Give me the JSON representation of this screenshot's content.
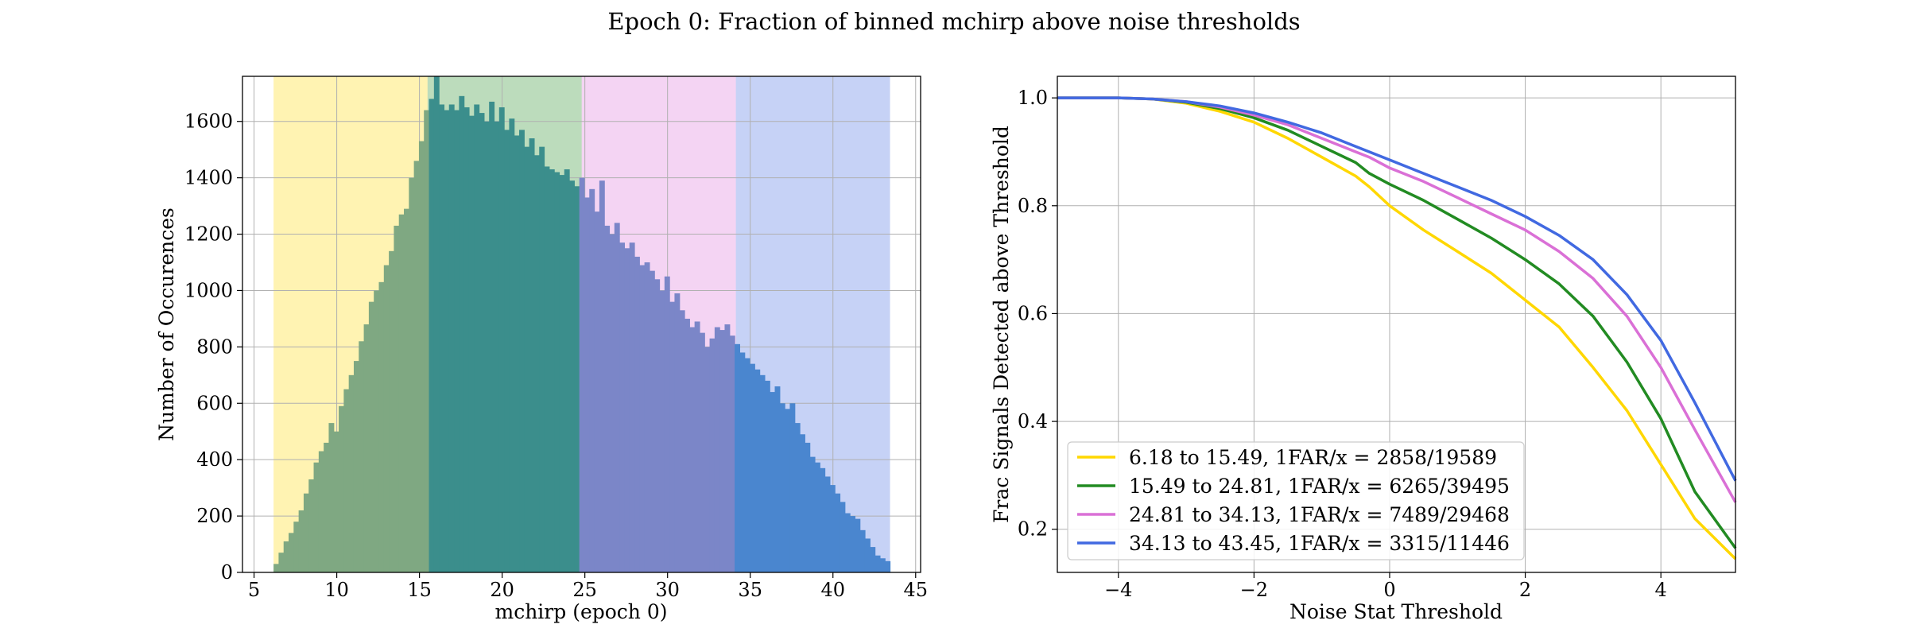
{
  "figure_title": "Epoch 0: Fraction of binned mchirp above noise thresholds",
  "chart_data": [
    {
      "type": "bar",
      "subtype": "histogram",
      "title": "",
      "xlabel": "mchirp (epoch 0)",
      "ylabel": "Number of Occurences",
      "xlim": [
        4.3,
        45.3
      ],
      "ylim": [
        0,
        1760
      ],
      "xticks": [
        5,
        10,
        15,
        20,
        25,
        30,
        35,
        40,
        45
      ],
      "yticks": [
        0,
        200,
        400,
        600,
        800,
        1000,
        1200,
        1400,
        1600
      ],
      "grid": true,
      "bins_start": 6.18,
      "bins_end": 43.45,
      "counts": [
        30,
        70,
        110,
        140,
        180,
        220,
        280,
        330,
        390,
        430,
        460,
        530,
        500,
        590,
        650,
        700,
        750,
        820,
        880,
        960,
        1000,
        1030,
        1090,
        1140,
        1230,
        1270,
        1290,
        1400,
        1460,
        1530,
        1640,
        1680,
        1760,
        1660,
        1640,
        1660,
        1640,
        1690,
        1650,
        1620,
        1660,
        1630,
        1600,
        1670,
        1600,
        1650,
        1570,
        1610,
        1550,
        1570,
        1510,
        1540,
        1480,
        1510,
        1440,
        1430,
        1420,
        1410,
        1430,
        1390,
        1370,
        1400,
        1330,
        1360,
        1280,
        1390,
        1230,
        1200,
        1240,
        1170,
        1150,
        1170,
        1120,
        1090,
        1100,
        1070,
        1040,
        1000,
        1050,
        960,
        990,
        930,
        900,
        870,
        890,
        850,
        800,
        830,
        870,
        860,
        880,
        840,
        810,
        780,
        760,
        740,
        720,
        700,
        680,
        640,
        660,
        600,
        580,
        600,
        530,
        490,
        460,
        410,
        390,
        370,
        340,
        310,
        280,
        250,
        210,
        200,
        190,
        150,
        120,
        90,
        60,
        50,
        40
      ],
      "bands": [
        {
          "from": 6.18,
          "to": 15.49,
          "color": "#ffd700",
          "overlay": "#7fa882"
        },
        {
          "from": 15.49,
          "to": 24.81,
          "color": "#228b22",
          "overlay": "#3b8e8c"
        },
        {
          "from": 24.81,
          "to": 34.13,
          "color": "#da70d6",
          "overlay": "#7b86c8"
        },
        {
          "from": 34.13,
          "to": 43.45,
          "color": "#4169e1",
          "overlay": "#4a86cf"
        }
      ]
    },
    {
      "type": "line",
      "title": "",
      "xlabel": "Noise Stat Threshold",
      "ylabel": "Frac Signals Detected above Threshold",
      "xlim": [
        -4.9,
        5.1
      ],
      "ylim": [
        0.12,
        1.04
      ],
      "xticks": [
        -4,
        -2,
        0,
        2,
        4
      ],
      "xtick_labels": [
        "−4",
        "−2",
        "0",
        "2",
        "4"
      ],
      "yticks": [
        0.2,
        0.4,
        0.6,
        0.8,
        1.0
      ],
      "ytick_labels": [
        "0.2",
        "0.4",
        "0.6",
        "0.8",
        "1.0"
      ],
      "grid": true,
      "legend_position": "lower-left",
      "x": [
        -4.9,
        -4.0,
        -3.5,
        -3.0,
        -2.5,
        -2.0,
        -1.5,
        -1.0,
        -0.5,
        -0.3,
        0.0,
        0.5,
        1.0,
        1.5,
        2.0,
        2.5,
        3.0,
        3.5,
        4.0,
        4.5,
        5.1
      ],
      "series": [
        {
          "name": "6.18 to 15.49, 1FAR/x = 2858/19589",
          "color": "#ffd700",
          "values": [
            1.0,
            1.0,
            0.998,
            0.99,
            0.975,
            0.955,
            0.925,
            0.89,
            0.855,
            0.835,
            0.8,
            0.755,
            0.715,
            0.675,
            0.625,
            0.575,
            0.5,
            0.42,
            0.32,
            0.22,
            0.145
          ]
        },
        {
          "name": "15.49 to 24.81, 1FAR/x = 6265/39495",
          "color": "#228b22",
          "values": [
            1.0,
            1.0,
            0.998,
            0.992,
            0.98,
            0.963,
            0.94,
            0.91,
            0.88,
            0.86,
            0.84,
            0.81,
            0.775,
            0.74,
            0.7,
            0.655,
            0.595,
            0.51,
            0.405,
            0.27,
            0.165
          ]
        },
        {
          "name": "24.81 to 34.13, 1FAR/x = 7489/29468",
          "color": "#da70d6",
          "values": [
            1.0,
            1.0,
            0.998,
            0.993,
            0.983,
            0.968,
            0.95,
            0.925,
            0.9,
            0.89,
            0.87,
            0.845,
            0.815,
            0.785,
            0.755,
            0.715,
            0.665,
            0.595,
            0.5,
            0.385,
            0.25
          ]
        },
        {
          "name": "34.13 to 43.45, 1FAR/x = 3315/11446",
          "color": "#4169e1",
          "values": [
            1.0,
            1.0,
            0.998,
            0.993,
            0.985,
            0.972,
            0.955,
            0.935,
            0.91,
            0.9,
            0.885,
            0.86,
            0.835,
            0.81,
            0.78,
            0.745,
            0.7,
            0.635,
            0.55,
            0.435,
            0.29
          ]
        }
      ]
    }
  ]
}
